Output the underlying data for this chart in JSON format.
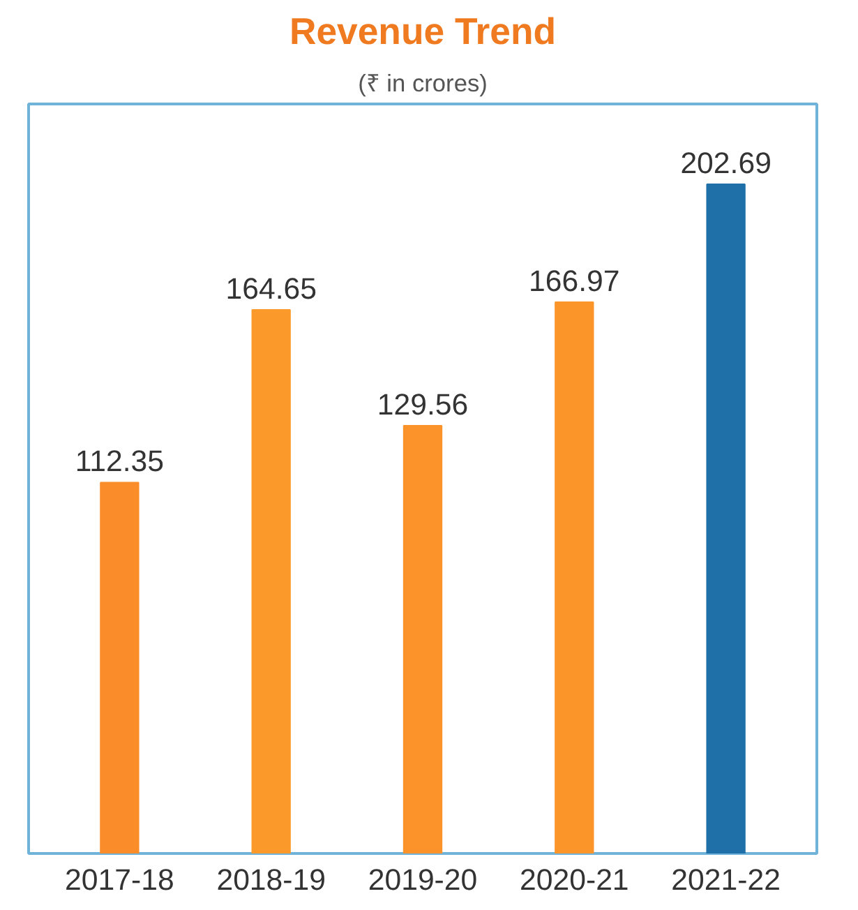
{
  "chart_data": {
    "type": "bar",
    "title": "Revenue Trend",
    "subtitle": "(₹ in crores)",
    "categories": [
      "2017-18",
      "2018-19",
      "2019-20",
      "2020-21",
      "2021-22"
    ],
    "values": [
      112.35,
      164.65,
      129.56,
      166.97,
      202.69
    ],
    "colors": [
      "#fb8c2a",
      "#fb9a2a",
      "#fb922a",
      "#fb952a",
      "#1f6fa8"
    ],
    "data_labels": true
  }
}
